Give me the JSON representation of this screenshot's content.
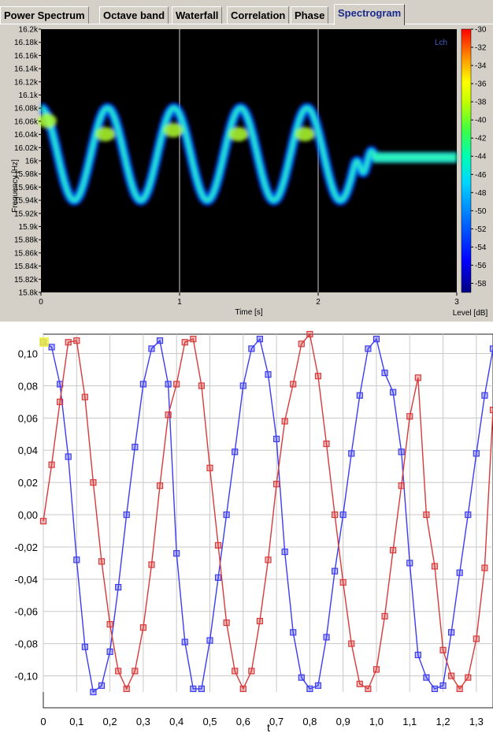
{
  "tabs": [
    {
      "label": "Power Spectrum",
      "active": false
    },
    {
      "label": "Octave band",
      "active": false
    },
    {
      "label": "Waterfall",
      "active": false
    },
    {
      "label": "Correlation",
      "active": false
    },
    {
      "label": "Phase",
      "active": false
    },
    {
      "label": "Spectrogram",
      "active": true
    }
  ],
  "chart_data": [
    {
      "type": "heatmap",
      "xlabel": "Time [s]",
      "ylabel": "Frequency [Hz]",
      "channel_label": "Lch",
      "xlim": [
        0,
        3
      ],
      "x_ticks": [
        "0",
        "1",
        "2",
        "3"
      ],
      "ylim": [
        15800,
        16200
      ],
      "y_ticks": [
        "16.2k",
        "16.18k",
        "16.16k",
        "16.14k",
        "16.12k",
        "16.1k",
        "16.08k",
        "16.06k",
        "16.04k",
        "16.02k",
        "16k",
        "15.98k",
        "15.96k",
        "15.94k",
        "15.92k",
        "15.9k",
        "15.88k",
        "15.86k",
        "15.84k",
        "15.82k",
        "15.8k"
      ],
      "colorbar": {
        "label": "Level [dB]",
        "ticks": [
          "-30",
          "-32",
          "-34",
          "-36",
          "-38",
          "-40",
          "-42",
          "-44",
          "-46",
          "-48",
          "-50",
          "-52",
          "-54",
          "-56",
          "-58"
        ],
        "range": [
          -59,
          -30
        ]
      },
      "vertical_gridlines_at": [
        1,
        2
      ],
      "trace": {
        "description_sweep_peaks_s": [
          0.0,
          0.42,
          0.91,
          1.38,
          1.86
        ],
        "sweep_troughs_s": [
          0.2,
          0.66,
          1.14,
          1.61,
          2.08
        ],
        "sweep_period_s": 0.48,
        "sweep_center_hz": 16010,
        "sweep_amplitude_hz": 70,
        "sweep_end_s": 2.25,
        "steady_hz": 16005,
        "steady_start_s": 2.4,
        "steady_end_s": 3.0
      },
      "background_color": "#000000",
      "colormap": [
        "#000080",
        "#0000ff",
        "#0080ff",
        "#00c0ff",
        "#00ffc0",
        "#40ff40",
        "#c0ff00",
        "#ffff00",
        "#ffc000",
        "#ff6000",
        "#ff0000"
      ]
    },
    {
      "type": "line",
      "xlabel": "t",
      "ylabel": "",
      "xlim": [
        0,
        1.35
      ],
      "ylim": [
        -0.11,
        0.112
      ],
      "x_ticks": [
        "0",
        "0,1",
        "0,2",
        "0,3",
        "0,4",
        "0,5",
        "0,6",
        "0,7",
        "0,8",
        "0,9",
        "1,0",
        "1,1",
        "1,2",
        "1,3"
      ],
      "y_ticks": [
        "-0,10",
        "-0,08",
        "-0,06",
        "-0,04",
        "-0,02",
        "0,00",
        "0,02",
        "0,04",
        "0,06",
        "0,08",
        "0,10"
      ],
      "grid": true,
      "series": [
        {
          "color": "#3c3cf0",
          "x": [
            0,
            0.025,
            0.05,
            0.075,
            0.1,
            0.125,
            0.15,
            0.175,
            0.2,
            0.225,
            0.25,
            0.275,
            0.3,
            0.325,
            0.35,
            0.375,
            0.4,
            0.425,
            0.45,
            0.475,
            0.5,
            0.525,
            0.55,
            0.575,
            0.6,
            0.625,
            0.65,
            0.675,
            0.7,
            0.725,
            0.75,
            0.775,
            0.8,
            0.825,
            0.85,
            0.875,
            0.9,
            0.925,
            0.95,
            0.975,
            1.0,
            1.025,
            1.05,
            1.075,
            1.1,
            1.125,
            1.15,
            1.175,
            1.2,
            1.225,
            1.25,
            1.275,
            1.3,
            1.325,
            1.35
          ],
          "y": [
            0.107,
            0.104,
            0.081,
            0.036,
            -0.028,
            -0.082,
            -0.11,
            -0.106,
            -0.085,
            -0.045,
            0.0,
            0.042,
            0.081,
            0.103,
            0.108,
            0.081,
            -0.024,
            -0.079,
            -0.108,
            -0.108,
            -0.078,
            -0.039,
            0.0,
            0.039,
            0.08,
            0.103,
            0.109,
            0.087,
            0.047,
            -0.023,
            -0.073,
            -0.101,
            -0.108,
            -0.106,
            -0.076,
            -0.035,
            0.0,
            0.038,
            0.074,
            0.103,
            0.109,
            0.088,
            0.076,
            0.039,
            -0.03,
            -0.087,
            -0.101,
            -0.108,
            -0.106,
            -0.073,
            -0.036,
            0.0,
            0.038,
            0.074,
            0.103
          ]
        },
        {
          "color": "#d83a3a",
          "x": [
            0,
            0.025,
            0.05,
            0.075,
            0.1,
            0.125,
            0.15,
            0.175,
            0.2,
            0.225,
            0.25,
            0.275,
            0.3,
            0.325,
            0.35,
            0.375,
            0.4,
            0.425,
            0.45,
            0.475,
            0.5,
            0.525,
            0.55,
            0.575,
            0.6,
            0.625,
            0.65,
            0.675,
            0.7,
            0.725,
            0.75,
            0.775,
            0.8,
            0.825,
            0.85,
            0.875,
            0.9,
            0.925,
            0.95,
            0.975,
            1.0,
            1.025,
            1.05,
            1.075,
            1.1,
            1.125,
            1.15,
            1.175,
            1.2,
            1.225,
            1.25,
            1.275,
            1.3,
            1.325,
            1.35
          ],
          "y": [
            -0.004,
            0.031,
            0.07,
            0.107,
            0.108,
            0.073,
            0.02,
            -0.029,
            -0.068,
            -0.097,
            -0.108,
            -0.097,
            -0.07,
            -0.031,
            0.018,
            0.062,
            0.081,
            0.107,
            0.109,
            0.08,
            0.029,
            -0.019,
            -0.067,
            -0.097,
            -0.108,
            -0.097,
            -0.066,
            -0.028,
            0.019,
            0.058,
            0.081,
            0.106,
            0.112,
            0.086,
            0.044,
            0.0,
            -0.042,
            -0.08,
            -0.105,
            -0.108,
            -0.096,
            -0.063,
            -0.022,
            0.018,
            0.061,
            0.085,
            0.0,
            -0.032,
            -0.084,
            -0.1,
            -0.108,
            -0.101,
            -0.077,
            -0.033,
            0.065
          ]
        }
      ]
    }
  ]
}
